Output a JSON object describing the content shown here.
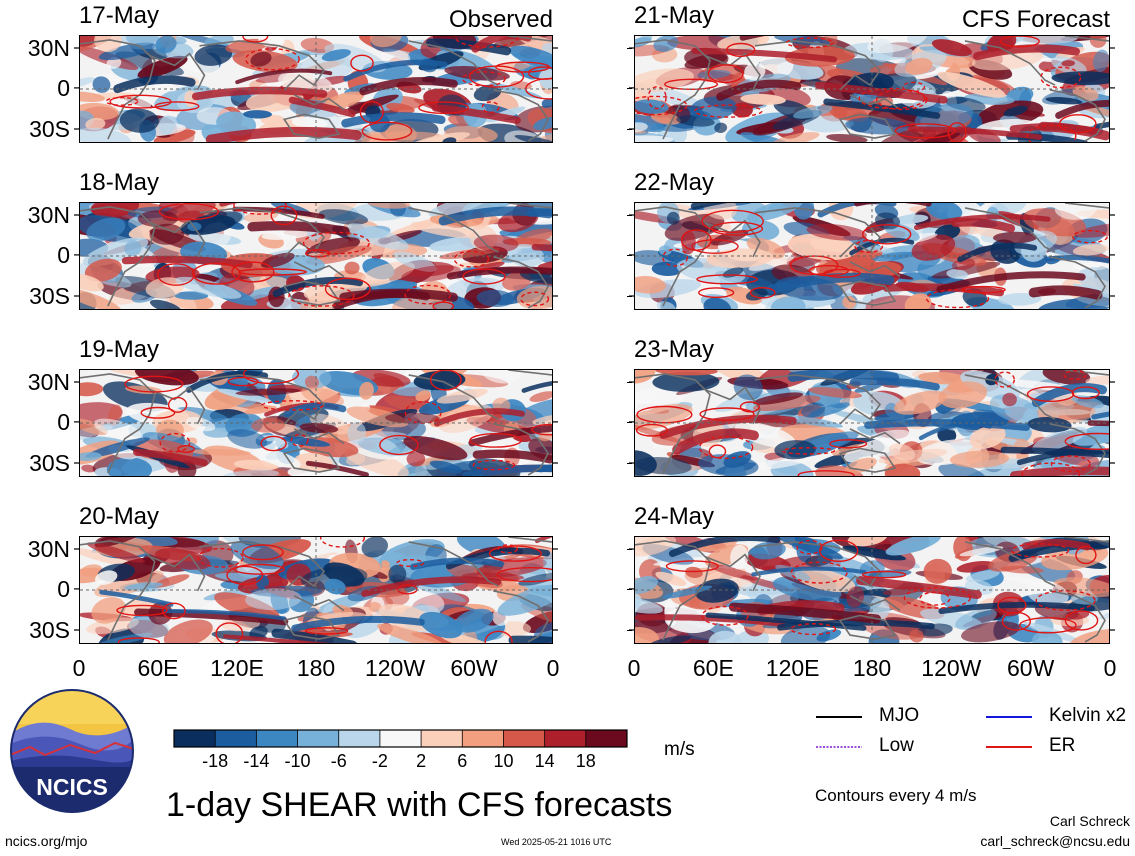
{
  "panels": [
    {
      "date": "17-May",
      "tag": "Observed"
    },
    {
      "date": "18-May",
      "tag": ""
    },
    {
      "date": "19-May",
      "tag": ""
    },
    {
      "date": "20-May",
      "tag": ""
    },
    {
      "date": "21-May",
      "tag": "CFS Forecast"
    },
    {
      "date": "22-May",
      "tag": ""
    },
    {
      "date": "23-May",
      "tag": ""
    },
    {
      "date": "24-May",
      "tag": ""
    }
  ],
  "lat_labels": [
    "30N",
    "0",
    "30S"
  ],
  "lon_labels": [
    "0",
    "60E",
    "120E",
    "180",
    "120W",
    "60W",
    "0"
  ],
  "colorbar": {
    "ticks": [
      "-18",
      "-14",
      "-10",
      "-6",
      "-2",
      "2",
      "6",
      "10",
      "14",
      "18"
    ],
    "colors": [
      "#0a2f5e",
      "#1c5d9f",
      "#3c86c2",
      "#77b0d8",
      "#b9d6ea",
      "#f7f7f7",
      "#fbd0bb",
      "#f19f7f",
      "#d5584a",
      "#ad1f2b",
      "#6b0a1e"
    ],
    "units": "m/s"
  },
  "title": "1-day SHEAR with CFS forecasts",
  "legend": [
    {
      "label": "MJO",
      "color": "#000000",
      "style": "solid"
    },
    {
      "label": "Kelvin x2",
      "color": "#1515e0",
      "style": "solid"
    },
    {
      "label": "Low",
      "color": "#9b4fd6",
      "style": "dotted"
    },
    {
      "label": "ER",
      "color": "#e01515",
      "style": "solid"
    }
  ],
  "contour_note": "Contours every 4 m/s",
  "logo": {
    "text": "NCICS"
  },
  "footer": {
    "website": "ncics.org/mjo",
    "timestamp": "Wed 2025-05-21 1016 UTC",
    "author": "Carl Schreck",
    "email": "carl_schreck@ncsu.edu"
  }
}
